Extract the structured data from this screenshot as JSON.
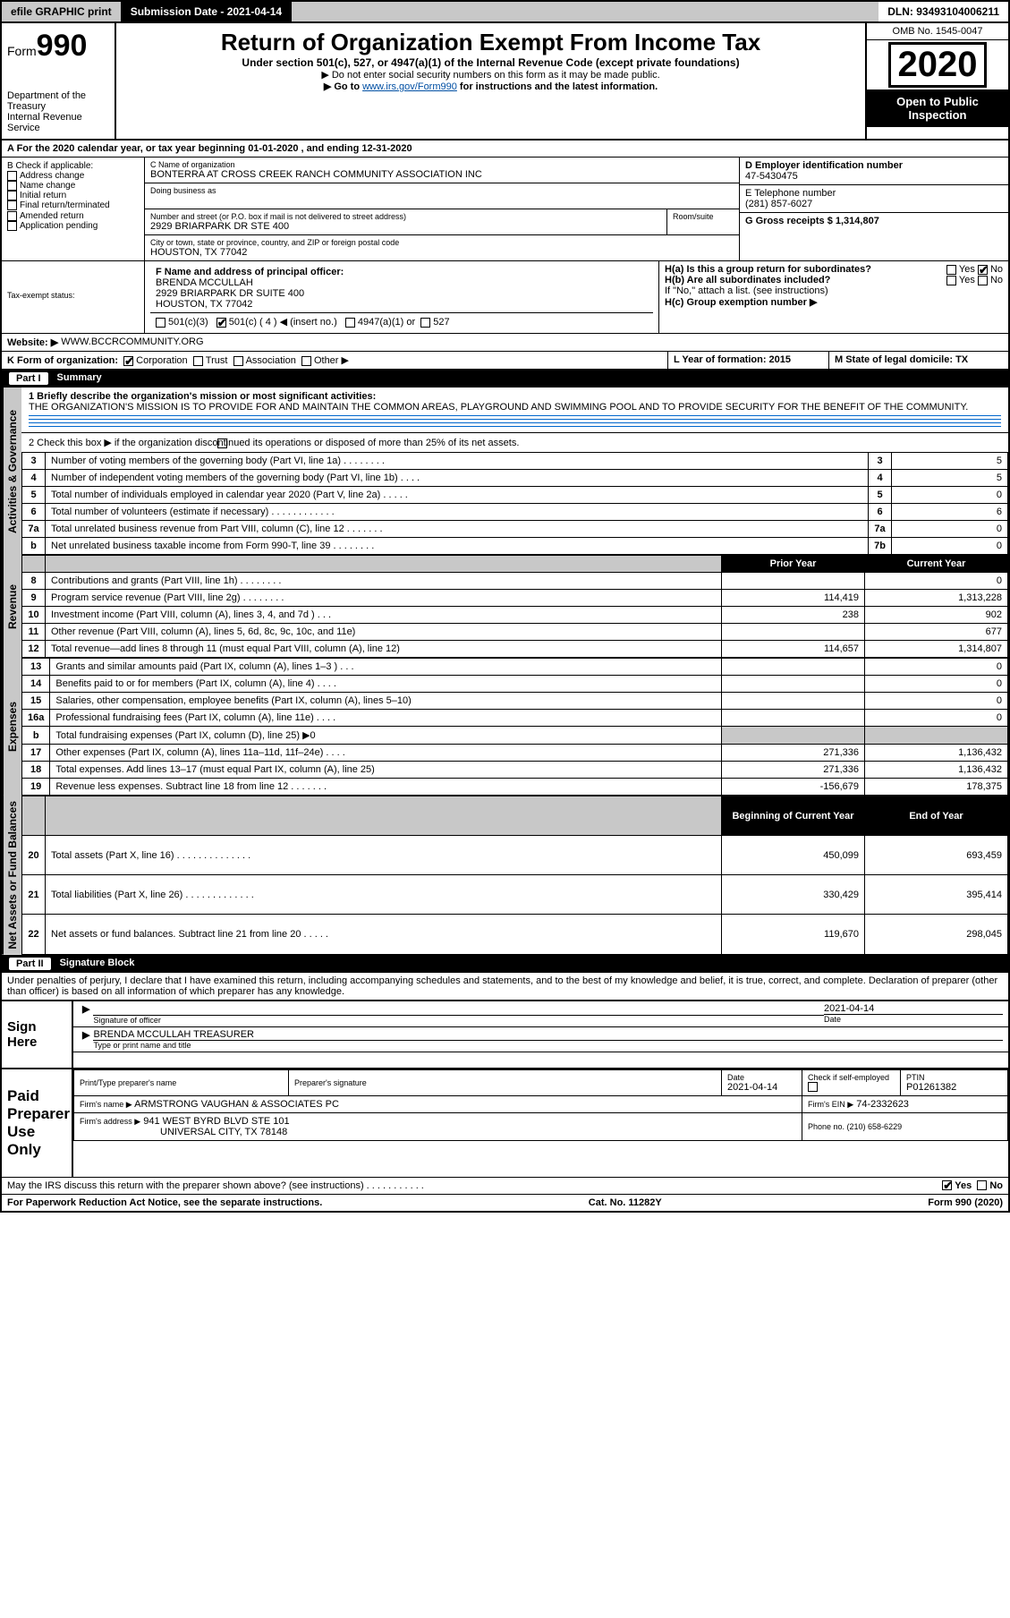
{
  "topbar": {
    "efile": "efile GRAPHIC print",
    "subdate_lbl": "Submission Date - 2021-04-14",
    "dln": "DLN: 93493104006211"
  },
  "header": {
    "form_label": "Form",
    "form_no": "990",
    "dept": "Department of the Treasury",
    "irs": "Internal Revenue Service",
    "title": "Return of Organization Exempt From Income Tax",
    "subtitle": "Under section 501(c), 527, or 4947(a)(1) of the Internal Revenue Code (except private foundations)",
    "note1": "▶ Do not enter social security numbers on this form as it may be made public.",
    "note2_pre": "▶ Go to ",
    "note2_link": "www.irs.gov/Form990",
    "note2_post": " for instructions and the latest information.",
    "omb": "OMB No. 1545-0047",
    "year": "2020",
    "open": "Open to Public Inspection"
  },
  "A": {
    "text": "A For the 2020 calendar year, or tax year beginning 01-01-2020    , and ending 12-31-2020"
  },
  "B": {
    "title": "B Check if applicable:",
    "items": [
      "Address change",
      "Name change",
      "Initial return",
      "Final return/terminated",
      "Amended return",
      "Application pending"
    ]
  },
  "C": {
    "name_lbl": "C Name of organization",
    "name": "BONTERRA AT CROSS CREEK RANCH COMMUNITY ASSOCIATION INC",
    "dba_lbl": "Doing business as",
    "addr_lbl": "Number and street (or P.O. box if mail is not delivered to street address)",
    "room_lbl": "Room/suite",
    "addr": "2929 BRIARPARK DR STE 400",
    "city_lbl": "City or town, state or province, country, and ZIP or foreign postal code",
    "city": "HOUSTON, TX  77042"
  },
  "D": {
    "lbl": "D Employer identification number",
    "val": "47-5430475"
  },
  "E": {
    "lbl": "E Telephone number",
    "val": "(281) 857-6027"
  },
  "G": {
    "lbl": "G Gross receipts $ 1,314,807"
  },
  "F": {
    "lbl": "F  Name and address of principal officer:",
    "name": "BRENDA MCCULLAH",
    "addr1": "2929 BRIARPARK DR SUITE 400",
    "addr2": "HOUSTON, TX  77042"
  },
  "H": {
    "a": "H(a)  Is this a group return for subordinates?",
    "b": "H(b)  Are all subordinates included?",
    "note": "If \"No,\" attach a list. (see instructions)",
    "c": "H(c)  Group exemption number ▶",
    "yes": "Yes",
    "no": "No"
  },
  "I": {
    "lbl": "Tax-exempt status:",
    "o1": "501(c)(3)",
    "o2": "501(c) ( 4 ) ◀ (insert no.)",
    "o3": "4947(a)(1) or",
    "o4": "527"
  },
  "J": {
    "lbl": "Website: ▶",
    "val": "WWW.BCCRCOMMUNITY.ORG"
  },
  "K": {
    "lbl": "K Form of organization:",
    "o1": "Corporation",
    "o2": "Trust",
    "o3": "Association",
    "o4": "Other ▶"
  },
  "L": {
    "lbl": "L Year of formation: 2015"
  },
  "M": {
    "lbl": "M State of legal domicile: TX"
  },
  "parts": {
    "p1": "Part I",
    "p1t": "Summary",
    "p2": "Part II",
    "p2t": "Signature Block"
  },
  "p1": {
    "l1": "1  Briefly describe the organization's mission or most significant activities:",
    "l1v": "THE ORGANIZATION'S MISSION IS TO PROVIDE FOR AND MAINTAIN THE COMMON AREAS, PLAYGROUND AND SWIMMING POOL AND TO PROVIDE SECURITY FOR THE BENEFIT OF THE COMMUNITY.",
    "l2": "2  Check this box ▶      if the organization discontinued its operations or disposed of more than 25% of its net assets.",
    "rows_ag": [
      {
        "n": "3",
        "d": "Number of voting members of the governing body (Part VI, line 1a)  .    .    .    .    .    .    .    .",
        "b": "3",
        "v": "5"
      },
      {
        "n": "4",
        "d": "Number of independent voting members of the governing body (Part VI, line 1b)  .    .    .    .",
        "b": "4",
        "v": "5"
      },
      {
        "n": "5",
        "d": "Total number of individuals employed in calendar year 2020 (Part V, line 2a)  .    .    .    .    .",
        "b": "5",
        "v": "0"
      },
      {
        "n": "6",
        "d": "Total number of volunteers (estimate if necessary)    .    .    .    .    .    .    .    .    .    .    .    .",
        "b": "6",
        "v": "6"
      },
      {
        "n": "7a",
        "d": "Total unrelated business revenue from Part VIII, column (C), line 12   .    .    .    .    .    .    .",
        "b": "7a",
        "v": "0"
      },
      {
        "n": "b",
        "d": "Net unrelated business taxable income from Form 990-T, line 39   .    .    .    .    .    .    .    .",
        "b": "7b",
        "v": "0"
      }
    ],
    "hdr_py": "Prior Year",
    "hdr_cy": "Current Year",
    "rows_rev": [
      {
        "n": "8",
        "d": "Contributions and grants (Part VIII, line 1h)    .    .    .    .    .    .    .    .",
        "py": "",
        "cy": "0"
      },
      {
        "n": "9",
        "d": "Program service revenue (Part VIII, line 2g)    .    .    .    .    .    .    .    .",
        "py": "114,419",
        "cy": "1,313,228"
      },
      {
        "n": "10",
        "d": "Investment income (Part VIII, column (A), lines 3, 4, and 7d )    .    .    .",
        "py": "238",
        "cy": "902"
      },
      {
        "n": "11",
        "d": "Other revenue (Part VIII, column (A), lines 5, 6d, 8c, 9c, 10c, and 11e)",
        "py": "",
        "cy": "677"
      },
      {
        "n": "12",
        "d": "Total revenue—add lines 8 through 11 (must equal Part VIII, column (A), line 12)",
        "py": "114,657",
        "cy": "1,314,807"
      }
    ],
    "rows_exp": [
      {
        "n": "13",
        "d": "Grants and similar amounts paid (Part IX, column (A), lines 1–3 )  .    .    .",
        "py": "",
        "cy": "0"
      },
      {
        "n": "14",
        "d": "Benefits paid to or for members (Part IX, column (A), line 4)   .    .    .    .",
        "py": "",
        "cy": "0"
      },
      {
        "n": "15",
        "d": "Salaries, other compensation, employee benefits (Part IX, column (A), lines 5–10)",
        "py": "",
        "cy": "0"
      },
      {
        "n": "16a",
        "d": "Professional fundraising fees (Part IX, column (A), line 11e)   .    .    .    .",
        "py": "",
        "cy": "0"
      },
      {
        "n": "b",
        "d": "Total fundraising expenses (Part IX, column (D), line 25) ▶0",
        "py": "shade",
        "cy": "shade"
      },
      {
        "n": "17",
        "d": "Other expenses (Part IX, column (A), lines 11a–11d, 11f–24e)   .    .    .    .",
        "py": "271,336",
        "cy": "1,136,432"
      },
      {
        "n": "18",
        "d": "Total expenses. Add lines 13–17 (must equal Part IX, column (A), line 25)",
        "py": "271,336",
        "cy": "1,136,432"
      },
      {
        "n": "19",
        "d": "Revenue less expenses. Subtract line 18 from line 12 .    .    .    .    .    .    .",
        "py": "-156,679",
        "cy": "178,375"
      }
    ],
    "hdr_bcy": "Beginning of Current Year",
    "hdr_eoy": "End of Year",
    "rows_na": [
      {
        "n": "20",
        "d": "Total assets (Part X, line 16)  .    .    .    .    .    .    .    .    .    .    .    .    .    .",
        "py": "450,099",
        "cy": "693,459"
      },
      {
        "n": "21",
        "d": "Total liabilities (Part X, line 26)  .    .    .    .    .    .    .    .    .    .    .    .    .",
        "py": "330,429",
        "cy": "395,414"
      },
      {
        "n": "22",
        "d": "Net assets or fund balances. Subtract line 21 from line 20  .    .    .    .    .",
        "py": "119,670",
        "cy": "298,045"
      }
    ]
  },
  "side": {
    "ag": "Activities & Governance",
    "rev": "Revenue",
    "exp": "Expenses",
    "na": "Net Assets or Fund Balances"
  },
  "p2": {
    "decl": "Under penalties of perjury, I declare that I have examined this return, including accompanying schedules and statements, and to the best of my knowledge and belief, it is true, correct, and complete. Declaration of preparer (other than officer) is based on all information of which preparer has any knowledge.",
    "sign_here": "Sign Here",
    "sig_off": "Signature of officer",
    "date_lbl": "Date",
    "date": "2021-04-14",
    "name_title": "BRENDA MCCULLAH  TREASURER",
    "name_title_lbl": "Type or print name and title",
    "paid": "Paid Preparer Use Only",
    "pt_name_lbl": "Print/Type preparer's name",
    "pt_sig_lbl": "Preparer's signature",
    "pt_date_lbl": "Date",
    "pt_date": "2021-04-14",
    "pt_check": "Check         if self-employed",
    "ptin_lbl": "PTIN",
    "ptin": "P01261382",
    "firm_name_lbl": "Firm's name      ▶",
    "firm_name": "ARMSTRONG VAUGHAN & ASSOCIATES PC",
    "firm_ein_lbl": "Firm's EIN ▶",
    "firm_ein": "74-2332623",
    "firm_addr_lbl": "Firm's address ▶",
    "firm_addr1": "941 WEST BYRD BLVD STE 101",
    "firm_addr2": "UNIVERSAL CITY, TX  78148",
    "phone_lbl": "Phone no. (210) 658-6229",
    "discuss": "May the IRS discuss this return with the preparer shown above? (see instructions)    .    .    .    .    .    .    .    .    .    .    .",
    "yes": "Yes",
    "no": "No"
  },
  "footer": {
    "left": "For Paperwork Reduction Act Notice, see the separate instructions.",
    "mid": "Cat. No. 11282Y",
    "right": "Form 990 (2020)"
  }
}
